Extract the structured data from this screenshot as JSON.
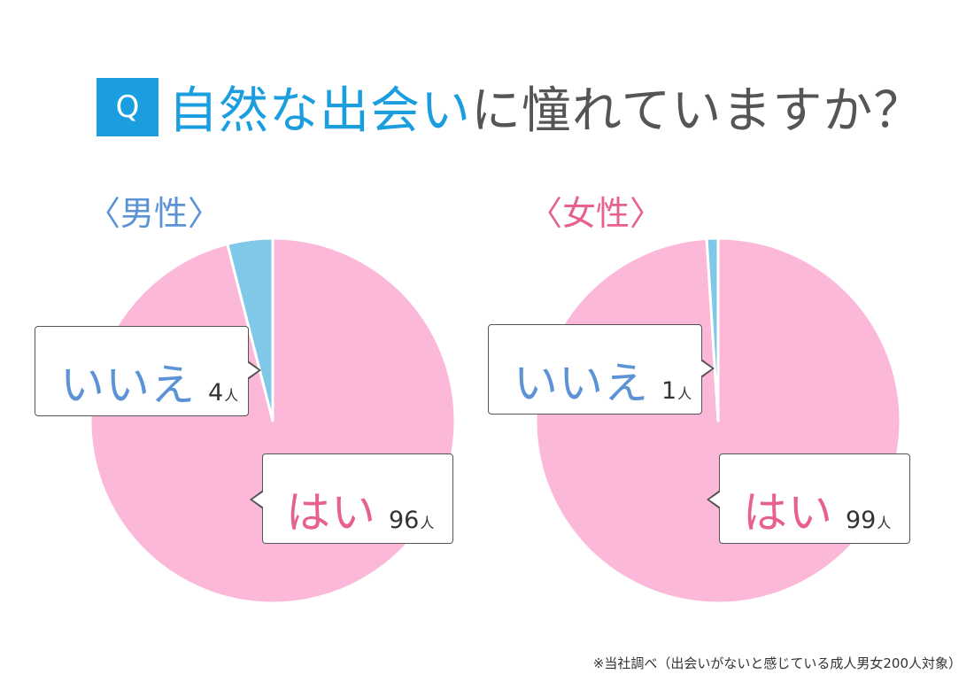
{
  "header": {
    "q_badge": "Q",
    "question_accent": "自然な出会い",
    "question_rest": "に憧れていますか？"
  },
  "colors": {
    "yes": "#fbb8d8",
    "no": "#7fc8e8",
    "accent": "#1a9ee0",
    "male_label": "#5b93d6",
    "female_label": "#e7608f"
  },
  "chart_data": [
    {
      "type": "pie",
      "title": "〈男性〉",
      "categories": [
        "はい",
        "いいえ"
      ],
      "values": [
        96,
        4
      ],
      "unit": "人",
      "colors": [
        "#fbb8d8",
        "#7fc8e8"
      ]
    },
    {
      "type": "pie",
      "title": "〈女性〉",
      "categories": [
        "はい",
        "いいえ"
      ],
      "values": [
        99,
        1
      ],
      "unit": "人",
      "colors": [
        "#fbb8d8",
        "#7fc8e8"
      ]
    }
  ],
  "labels": {
    "male": {
      "no_answer": "いいえ",
      "no_count": "4",
      "unit": "人",
      "yes_answer": "はい",
      "yes_count": "96"
    },
    "female": {
      "no_answer": "いいえ",
      "no_count": "1",
      "unit": "人",
      "yes_answer": "はい",
      "yes_count": "99"
    }
  },
  "footnote": "※当社調べ（出会いがないと感じている成人男女200人対象）"
}
